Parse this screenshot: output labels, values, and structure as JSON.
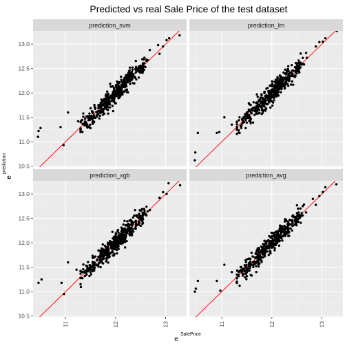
{
  "chart_data": {
    "type": "scatter",
    "title": "Predicted vs real Sale Price of the test dataset",
    "xlabel": {
      "base": "e",
      "exponent": "SalePrice"
    },
    "ylabel": {
      "base": "e",
      "exponent": "prediction"
    },
    "xlim": [
      10.35,
      13.42
    ],
    "ylim": [
      10.48,
      13.27
    ],
    "x_ticks": [
      11,
      12,
      13
    ],
    "y_ticks": [
      10.5,
      11.0,
      11.5,
      12.0,
      12.5,
      13.0
    ],
    "y_tick_labels": [
      "10.5",
      "11.0",
      "11.5",
      "12.0",
      "12.5",
      "13.0"
    ],
    "x_tick_labels": [
      "11",
      "12",
      "13"
    ],
    "grid": true,
    "reference_line": {
      "slope": 1,
      "intercept": 0,
      "color": "#ff0000"
    },
    "point_color": "#000000",
    "panel_background": "#ebebeb",
    "strip_background": "#d9d9d9",
    "panels": [
      {
        "name": "prediction_svm",
        "outliers": [
          [
            10.46,
            11.22
          ],
          [
            10.5,
            11.28
          ],
          [
            10.45,
            11.1
          ],
          [
            10.9,
            11.3
          ],
          [
            10.96,
            10.93
          ],
          [
            11.05,
            11.6
          ],
          [
            11.25,
            11.42
          ],
          [
            13.02,
            13.08
          ],
          [
            13.07,
            13.12
          ],
          [
            13.28,
            13.18
          ],
          [
            12.85,
            12.98
          ]
        ]
      },
      {
        "name": "prediction_lm",
        "outliers": [
          [
            10.46,
            10.62
          ],
          [
            10.47,
            10.78
          ],
          [
            10.52,
            11.18
          ],
          [
            10.9,
            11.18
          ],
          [
            10.95,
            11.2
          ],
          [
            11.05,
            11.5
          ],
          [
            11.2,
            11.35
          ],
          [
            13.02,
            13.05
          ],
          [
            13.07,
            13.12
          ],
          [
            13.3,
            13.27
          ],
          [
            12.7,
            12.72
          ]
        ]
      },
      {
        "name": "prediction_xgb",
        "outliers": [
          [
            10.46,
            11.18
          ],
          [
            10.52,
            11.25
          ],
          [
            10.92,
            11.18
          ],
          [
            10.97,
            10.95
          ],
          [
            11.05,
            11.6
          ],
          [
            11.22,
            11.45
          ],
          [
            13.02,
            13.0
          ],
          [
            13.06,
            13.22
          ],
          [
            13.29,
            13.18
          ],
          [
            12.88,
            12.92
          ]
        ]
      },
      {
        "name": "prediction_avg",
        "outliers": [
          [
            10.46,
            11.0
          ],
          [
            10.48,
            11.06
          ],
          [
            10.52,
            11.22
          ],
          [
            10.9,
            11.22
          ],
          [
            10.97,
            11.02
          ],
          [
            11.05,
            11.55
          ],
          [
            11.2,
            11.4
          ],
          [
            13.02,
            13.04
          ],
          [
            13.07,
            13.14
          ],
          [
            13.29,
            13.2
          ],
          [
            12.82,
            12.9
          ]
        ]
      }
    ],
    "cloud": {
      "n": 420,
      "x_center": 12.0,
      "x_spread": 0.38,
      "noise_sd": 0.1,
      "x_min": 11.3,
      "x_max": 12.95
    }
  }
}
